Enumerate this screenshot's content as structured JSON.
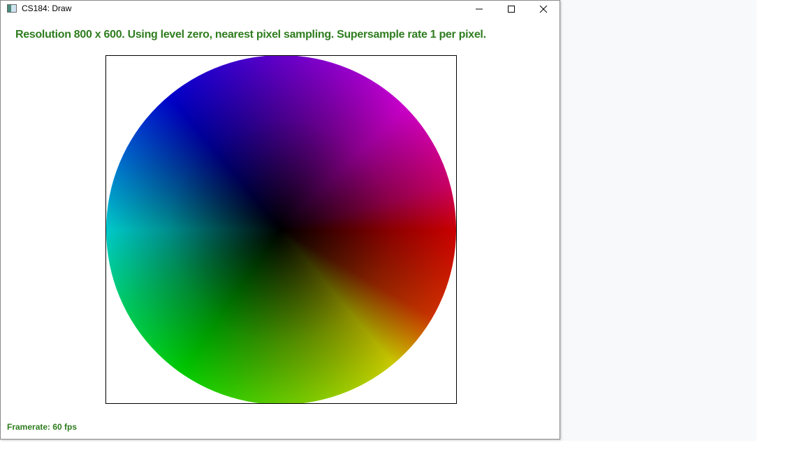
{
  "window": {
    "title": "CS184: Draw"
  },
  "controls": {
    "minimize_icon": "minimize-icon",
    "maximize_icon": "maximize-icon",
    "close_icon": "close-icon"
  },
  "overlay": {
    "status_text": "Resolution 800 x 600. Using level zero, nearest pixel sampling. Supersample rate 1 per pixel.",
    "framerate_text": "Framerate: 60 fps"
  },
  "colors": {
    "status_text": "#2f7d1f",
    "frame_border": "#000000"
  }
}
